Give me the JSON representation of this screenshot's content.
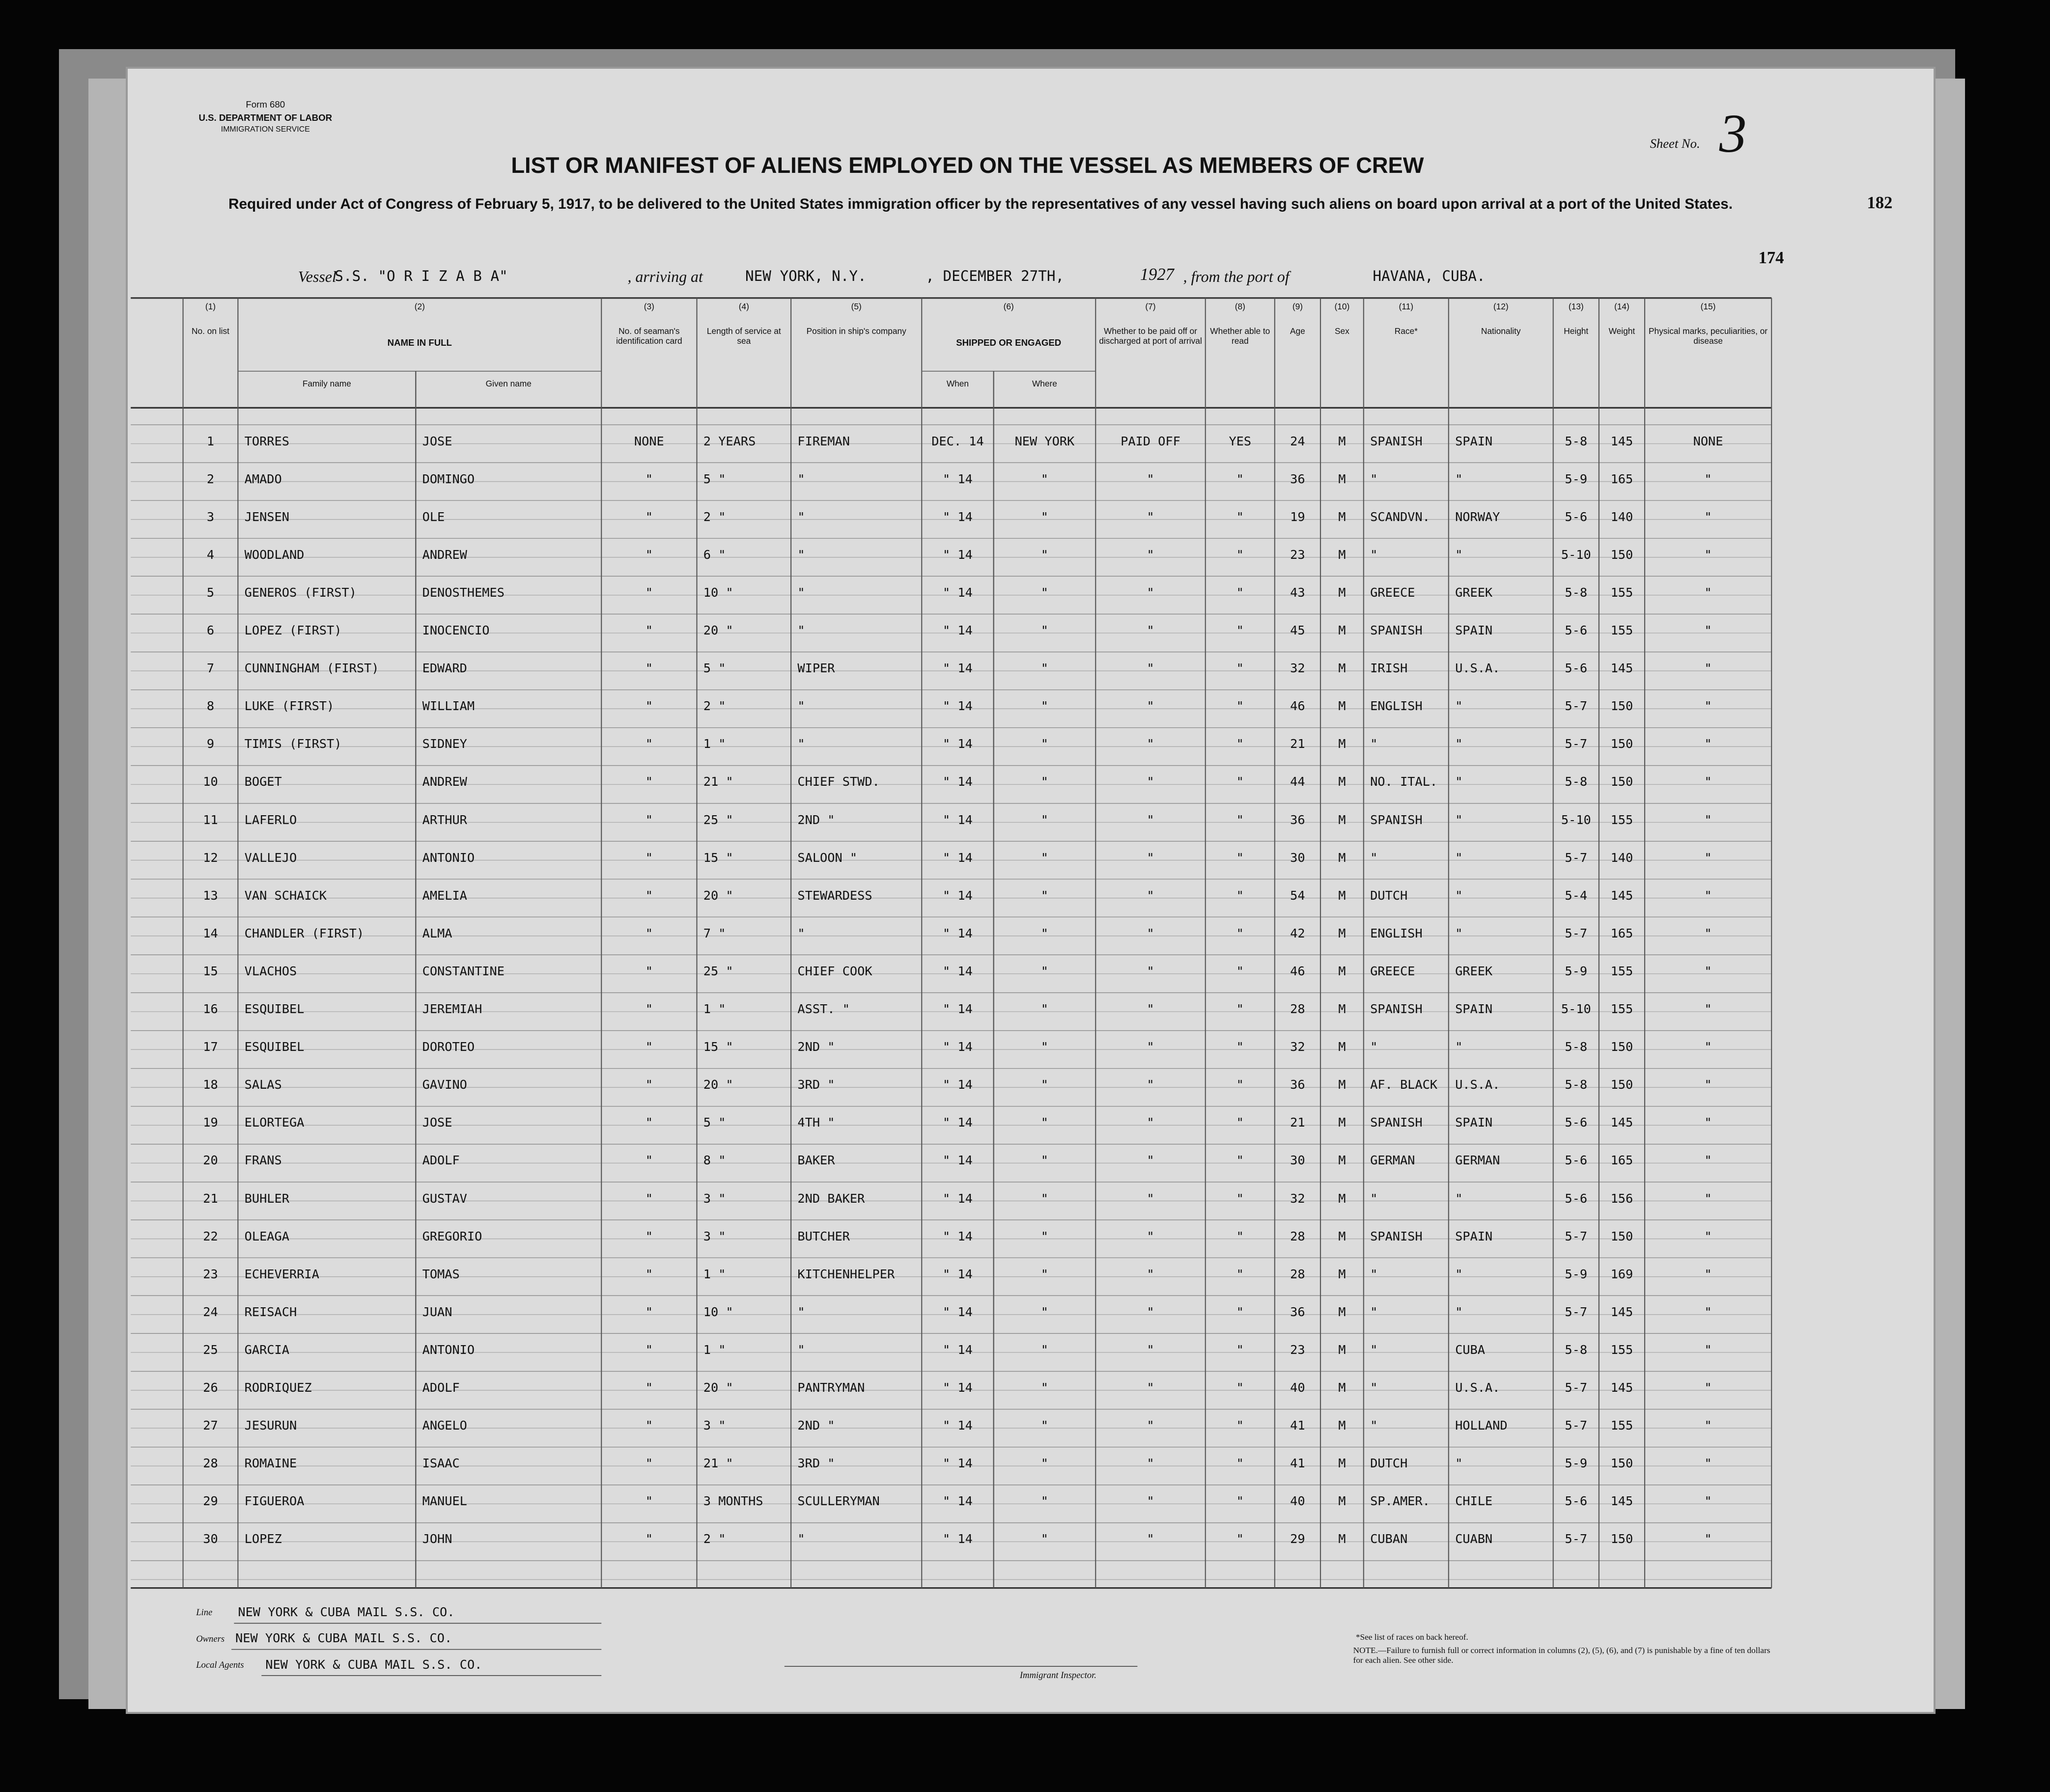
{
  "header": {
    "form_no": "Form 680",
    "department": "U.S. DEPARTMENT OF LABOR",
    "service": "IMMIGRATION SERVICE",
    "title": "LIST OR MANIFEST OF ALIENS EMPLOYED ON THE VESSEL AS MEMBERS OF CREW",
    "subtitle": "Required under Act of Congress of February 5, 1917, to be delivered to the United States immigration officer by the representatives of any vessel having such aliens on board upon arrival at a port of the United States.",
    "sheet_label": "Sheet No.",
    "sheet_no": "3",
    "page_a": "182",
    "page_b": "174"
  },
  "vessel": {
    "label": "Vessel",
    "name": "S.S. \"O R I Z A B A\"",
    "arriving_label": ", arriving at",
    "port": "NEW YORK, N.Y.",
    "date": ", DECEMBER 27TH,",
    "year": "1927",
    "from_label": ", from the port of",
    "origin": "HAVANA, CUBA."
  },
  "columns": [
    {
      "number": "(1)",
      "label": "No. on list"
    },
    {
      "number": "(2)",
      "label": "NAME IN FULL",
      "sub": [
        "Family name",
        "Given name"
      ]
    },
    {
      "number": "(3)",
      "label": "No. of seaman's identification card"
    },
    {
      "number": "(4)",
      "label": "Length of service at sea"
    },
    {
      "number": "(5)",
      "label": "Position in ship's company"
    },
    {
      "number": "(6)",
      "label": "SHIPPED OR ENGAGED",
      "sub": [
        "When",
        "Where"
      ]
    },
    {
      "number": "(7)",
      "label": "Whether to be paid off or discharged at port of arrival"
    },
    {
      "number": "(8)",
      "label": "Whether able to read"
    },
    {
      "number": "(9)",
      "label": "Age"
    },
    {
      "number": "(10)",
      "label": "Sex"
    },
    {
      "number": "(11)",
      "label": "Race*"
    },
    {
      "number": "(12)",
      "label": "Nationality"
    },
    {
      "number": "(13)",
      "label": "Height"
    },
    {
      "number": "(14)",
      "label": "Weight"
    },
    {
      "number": "(15)",
      "label": "Physical marks, peculiarities, or disease"
    }
  ],
  "rows": [
    [
      "1",
      "TORRES",
      "JOSE",
      "NONE",
      "2 YEARS",
      "FIREMAN",
      "DEC. 14",
      "NEW YORK",
      "PAID OFF",
      "YES",
      "24",
      "M",
      "SPANISH",
      "SPAIN",
      "5-8",
      "145",
      "NONE"
    ],
    [
      "2",
      "AMADO",
      "DOMINGO",
      "\"",
      "5 \"",
      "\"",
      "\" 14",
      "\"",
      "\"",
      "\"",
      "36",
      "M",
      "\"",
      "\"",
      "5-9",
      "165",
      "\""
    ],
    [
      "3",
      "JENSEN",
      "OLE",
      "\"",
      "2 \"",
      "\"",
      "\" 14",
      "\"",
      "\"",
      "\"",
      "19",
      "M",
      "SCANDVN.",
      "NORWAY",
      "5-6",
      "140",
      "\""
    ],
    [
      "4",
      "WOODLAND",
      "ANDREW",
      "\"",
      "6 \"",
      "\"",
      "\" 14",
      "\"",
      "\"",
      "\"",
      "23",
      "M",
      "\"",
      "\"",
      "5-10",
      "150",
      "\""
    ],
    [
      "5",
      "GENEROS (FIRST)",
      "DENOSTHEMES",
      "\"",
      "10 \"",
      "\"",
      "\" 14",
      "\"",
      "\"",
      "\"",
      "43",
      "M",
      "GREECE",
      "GREEK",
      "5-8",
      "155",
      "\""
    ],
    [
      "6",
      "LOPEZ (FIRST)",
      "INOCENCIO",
      "\"",
      "20 \"",
      "\"",
      "\" 14",
      "\"",
      "\"",
      "\"",
      "45",
      "M",
      "SPANISH",
      "SPAIN",
      "5-6",
      "155",
      "\""
    ],
    [
      "7",
      "CUNNINGHAM (FIRST)",
      "EDWARD",
      "\"",
      "5 \"",
      "WIPER",
      "\" 14",
      "\"",
      "\"",
      "\"",
      "32",
      "M",
      "IRISH",
      "U.S.A.",
      "5-6",
      "145",
      "\""
    ],
    [
      "8",
      "LUKE (FIRST)",
      "WILLIAM",
      "\"",
      "2 \"",
      "\"",
      "\" 14",
      "\"",
      "\"",
      "\"",
      "46",
      "M",
      "ENGLISH",
      "\"",
      "5-7",
      "150",
      "\""
    ],
    [
      "9",
      "TIMIS (FIRST)",
      "SIDNEY",
      "\"",
      "1 \"",
      "\"",
      "\" 14",
      "\"",
      "\"",
      "\"",
      "21",
      "M",
      "\"",
      "\"",
      "5-7",
      "150",
      "\""
    ],
    [
      "10",
      "BOGET",
      "ANDREW",
      "\"",
      "21 \"",
      "CHIEF STWD.",
      "\" 14",
      "\"",
      "\"",
      "\"",
      "44",
      "M",
      "NO. ITAL.",
      "\"",
      "5-8",
      "150",
      "\""
    ],
    [
      "11",
      "LAFERLO",
      "ARTHUR",
      "\"",
      "25 \"",
      "2ND \"",
      "\" 14",
      "\"",
      "\"",
      "\"",
      "36",
      "M",
      "SPANISH",
      "\"",
      "5-10",
      "155",
      "\""
    ],
    [
      "12",
      "VALLEJO",
      "ANTONIO",
      "\"",
      "15 \"",
      "SALOON \"",
      "\" 14",
      "\"",
      "\"",
      "\"",
      "30",
      "M",
      "\"",
      "\"",
      "5-7",
      "140",
      "\""
    ],
    [
      "13",
      "VAN SCHAICK",
      "AMELIA",
      "\"",
      "20 \"",
      "STEWARDESS",
      "\" 14",
      "\"",
      "\"",
      "\"",
      "54",
      "M",
      "DUTCH",
      "\"",
      "5-4",
      "145",
      "\""
    ],
    [
      "14",
      "CHANDLER (FIRST)",
      "ALMA",
      "\"",
      "7 \"",
      "\"",
      "\" 14",
      "\"",
      "\"",
      "\"",
      "42",
      "M",
      "ENGLISH",
      "\"",
      "5-7",
      "165",
      "\""
    ],
    [
      "15",
      "VLACHOS",
      "CONSTANTINE",
      "\"",
      "25 \"",
      "CHIEF COOK",
      "\" 14",
      "\"",
      "\"",
      "\"",
      "46",
      "M",
      "GREECE",
      "GREEK",
      "5-9",
      "155",
      "\""
    ],
    [
      "16",
      "ESQUIBEL",
      "JEREMIAH",
      "\"",
      "1 \"",
      "ASST. \"",
      "\" 14",
      "\"",
      "\"",
      "\"",
      "28",
      "M",
      "SPANISH",
      "SPAIN",
      "5-10",
      "155",
      "\""
    ],
    [
      "17",
      "ESQUIBEL",
      "DOROTEO",
      "\"",
      "15 \"",
      "2ND \"",
      "\" 14",
      "\"",
      "\"",
      "\"",
      "32",
      "M",
      "\"",
      "\"",
      "5-8",
      "150",
      "\""
    ],
    [
      "18",
      "SALAS",
      "GAVINO",
      "\"",
      "20 \"",
      "3RD \"",
      "\" 14",
      "\"",
      "\"",
      "\"",
      "36",
      "M",
      "AF. BLACK",
      "U.S.A.",
      "5-8",
      "150",
      "\""
    ],
    [
      "19",
      "ELORTEGA",
      "JOSE",
      "\"",
      "5 \"",
      "4TH \"",
      "\" 14",
      "\"",
      "\"",
      "\"",
      "21",
      "M",
      "SPANISH",
      "SPAIN",
      "5-6",
      "145",
      "\""
    ],
    [
      "20",
      "FRANS",
      "ADOLF",
      "\"",
      "8 \"",
      "BAKER",
      "\" 14",
      "\"",
      "\"",
      "\"",
      "30",
      "M",
      "GERMAN",
      "GERMAN",
      "5-6",
      "165",
      "\""
    ],
    [
      "21",
      "BUHLER",
      "GUSTAV",
      "\"",
      "3 \"",
      "2ND BAKER",
      "\" 14",
      "\"",
      "\"",
      "\"",
      "32",
      "M",
      "\"",
      "\"",
      "5-6",
      "156",
      "\""
    ],
    [
      "22",
      "OLEAGA",
      "GREGORIO",
      "\"",
      "3 \"",
      "BUTCHER",
      "\" 14",
      "\"",
      "\"",
      "\"",
      "28",
      "M",
      "SPANISH",
      "SPAIN",
      "5-7",
      "150",
      "\""
    ],
    [
      "23",
      "ECHEVERRIA",
      "TOMAS",
      "\"",
      "1 \"",
      "KITCHENHELPER",
      "\" 14",
      "\"",
      "\"",
      "\"",
      "28",
      "M",
      "\"",
      "\"",
      "5-9",
      "169",
      "\""
    ],
    [
      "24",
      "REISACH",
      "JUAN",
      "\"",
      "10 \"",
      "\"",
      "\" 14",
      "\"",
      "\"",
      "\"",
      "36",
      "M",
      "\"",
      "\"",
      "5-7",
      "145",
      "\""
    ],
    [
      "25",
      "GARCIA",
      "ANTONIO",
      "\"",
      "1 \"",
      "\"",
      "\" 14",
      "\"",
      "\"",
      "\"",
      "23",
      "M",
      "\"",
      "CUBA",
      "5-8",
      "155",
      "\""
    ],
    [
      "26",
      "RODRIQUEZ",
      "ADOLF",
      "\"",
      "20 \"",
      "PANTRYMAN",
      "\" 14",
      "\"",
      "\"",
      "\"",
      "40",
      "M",
      "\"",
      "U.S.A.",
      "5-7",
      "145",
      "\""
    ],
    [
      "27",
      "JESURUN",
      "ANGELO",
      "\"",
      "3 \"",
      "2ND \"",
      "\" 14",
      "\"",
      "\"",
      "\"",
      "41",
      "M",
      "\"",
      "HOLLAND",
      "5-7",
      "155",
      "\""
    ],
    [
      "28",
      "ROMAINE",
      "ISAAC",
      "\"",
      "21 \"",
      "3RD \"",
      "\" 14",
      "\"",
      "\"",
      "\"",
      "41",
      "M",
      "DUTCH",
      "\"",
      "5-9",
      "150",
      "\""
    ],
    [
      "29",
      "FIGUEROA",
      "MANUEL",
      "\"",
      "3 MONTHS",
      "SCULLERYMAN",
      "\" 14",
      "\"",
      "\"",
      "\"",
      "40",
      "M",
      "SP.AMER.",
      "CHILE",
      "5-6",
      "145",
      "\""
    ],
    [
      "30",
      "LOPEZ",
      "JOHN",
      "\"",
      "2 \"",
      "\"",
      "\" 14",
      "\"",
      "\"",
      "\"",
      "29",
      "M",
      "CUBAN",
      "CUABN",
      "5-7",
      "150",
      "\""
    ]
  ],
  "footer": {
    "line_label": "Line",
    "line": "NEW YORK & CUBA MAIL S.S. CO.",
    "owners_label": "Owners",
    "owners": "NEW YORK & CUBA MAIL S.S. CO.",
    "agents_label": "Local Agents",
    "agents": "NEW YORK & CUBA MAIL S.S. CO.",
    "inspector": "Immigrant Inspector.",
    "note_races": "*See list of races on back hereof.",
    "note": "NOTE.—Failure to furnish full or correct information in columns (2), (5), (6), and (7) is punishable by a fine of ten dollars for each alien. See other side."
  }
}
